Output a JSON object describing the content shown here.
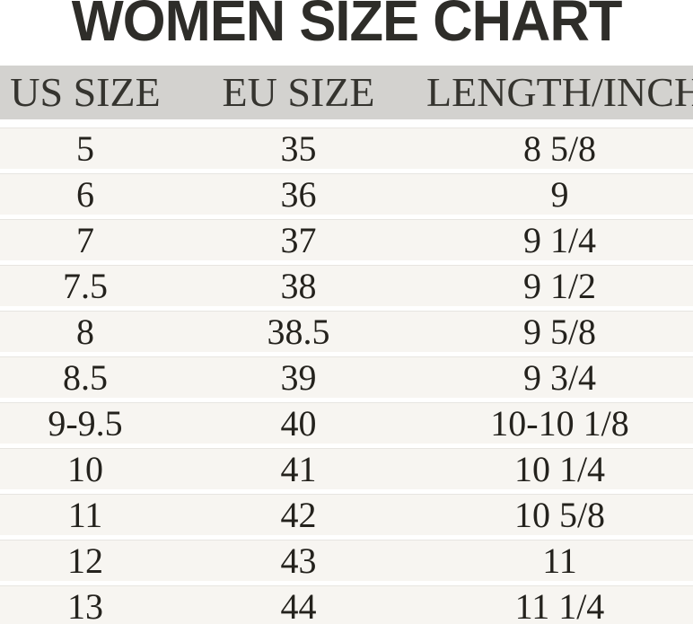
{
  "title": "WOMEN SIZE CHART",
  "colors": {
    "page_bg": "#ffffff",
    "title_color": "#2e2d29",
    "header_bg": "#d3d2cf",
    "header_text": "#35342f",
    "row_bg": "#f7f5f1",
    "separator_line": "#e7e5e1",
    "cell_text": "#24221d"
  },
  "chart_data": {
    "type": "table",
    "title": "WOMEN SIZE CHART",
    "columns": [
      "US SIZE",
      "EU SIZE",
      "LENGTH/INCH"
    ],
    "rows": [
      [
        "5",
        "35",
        "8 5/8"
      ],
      [
        "6",
        "36",
        "9"
      ],
      [
        "7",
        "37",
        "9 1/4"
      ],
      [
        "7.5",
        "38",
        "9 1/2"
      ],
      [
        "8",
        "38.5",
        "9 5/8"
      ],
      [
        "8.5",
        "39",
        "9 3/4"
      ],
      [
        "9-9.5",
        "40",
        "10-10 1/8"
      ],
      [
        "10",
        "41",
        "10 1/4"
      ],
      [
        "11",
        "42",
        "10 5/8"
      ],
      [
        "12",
        "43",
        "11"
      ],
      [
        "13",
        "44",
        "11 1/4"
      ]
    ]
  }
}
